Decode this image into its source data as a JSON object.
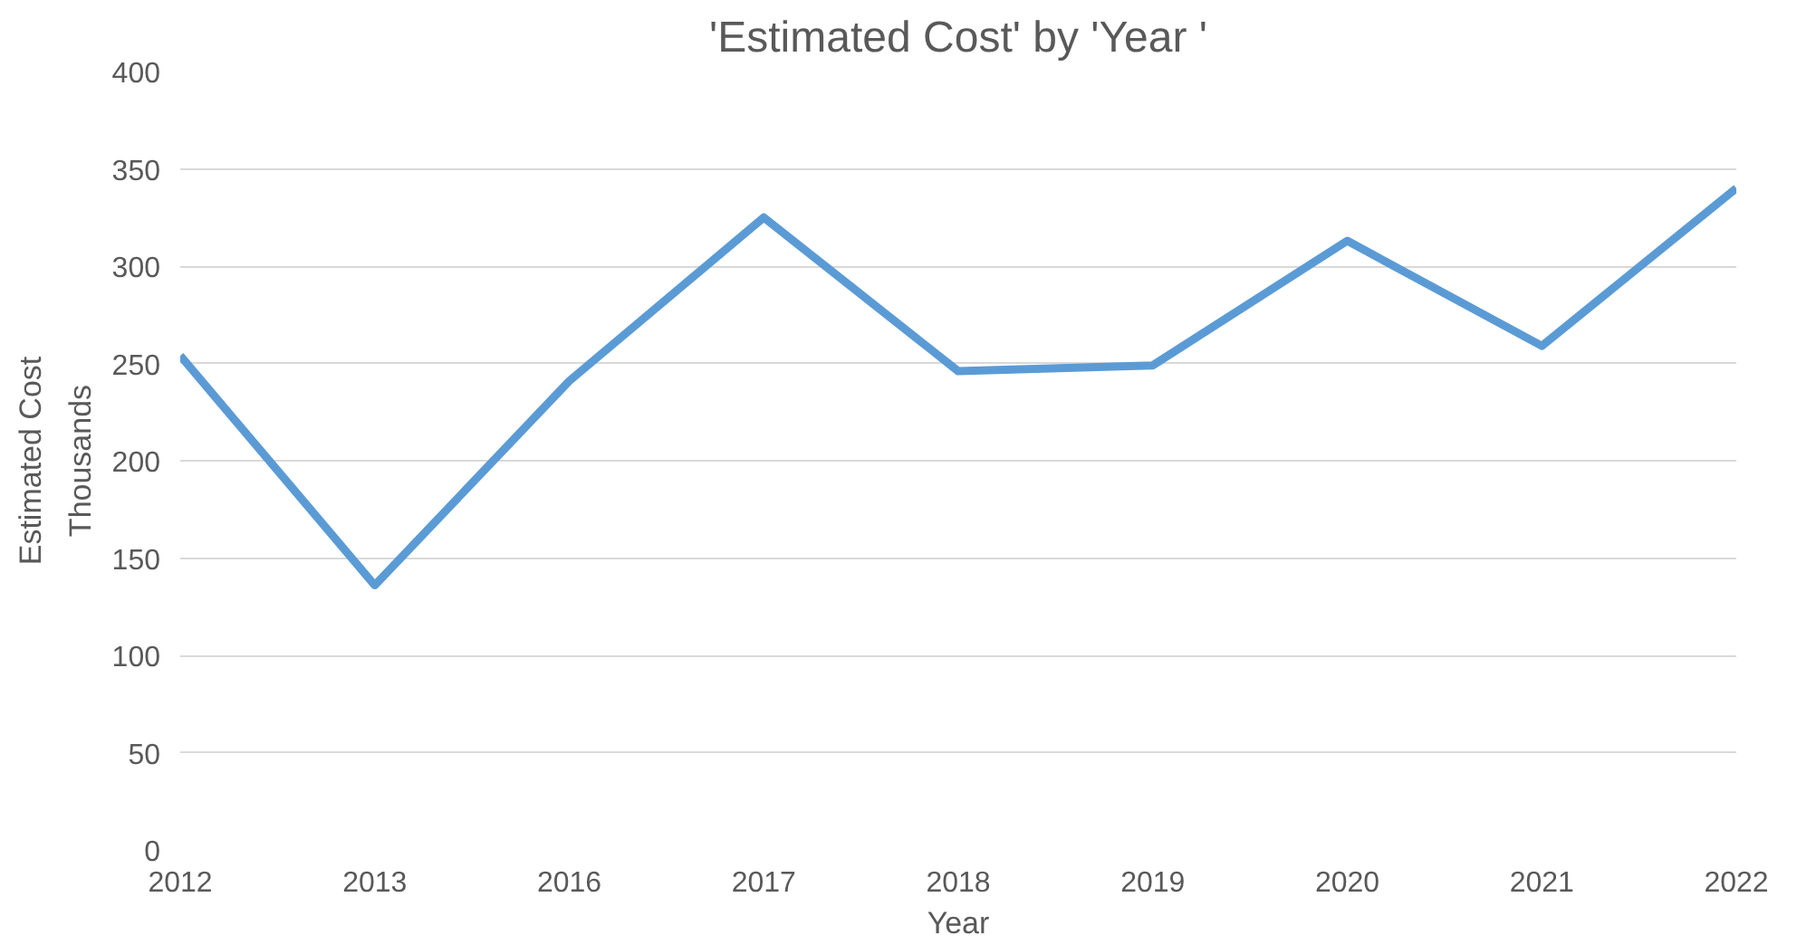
{
  "chart_data": {
    "type": "line",
    "title": "'Estimated Cost' by 'Year '",
    "xlabel": "Year",
    "ylabel": "Estimated Cost",
    "annotations": [
      "Thousands"
    ],
    "categories": [
      "2012",
      "2013",
      "2016",
      "2017",
      "2018",
      "2019",
      "2020",
      "2021",
      "2022"
    ],
    "series": [
      {
        "color": "#5b9bd5",
        "values": [
          254,
          136,
          241,
          325,
          246,
          249,
          313,
          259,
          340
        ]
      }
    ],
    "ylim": [
      0,
      400
    ],
    "yticks": [
      0,
      50,
      100,
      150,
      200,
      250,
      300,
      350,
      400
    ],
    "grid": "y",
    "marker": "none",
    "line_style": "solid"
  }
}
